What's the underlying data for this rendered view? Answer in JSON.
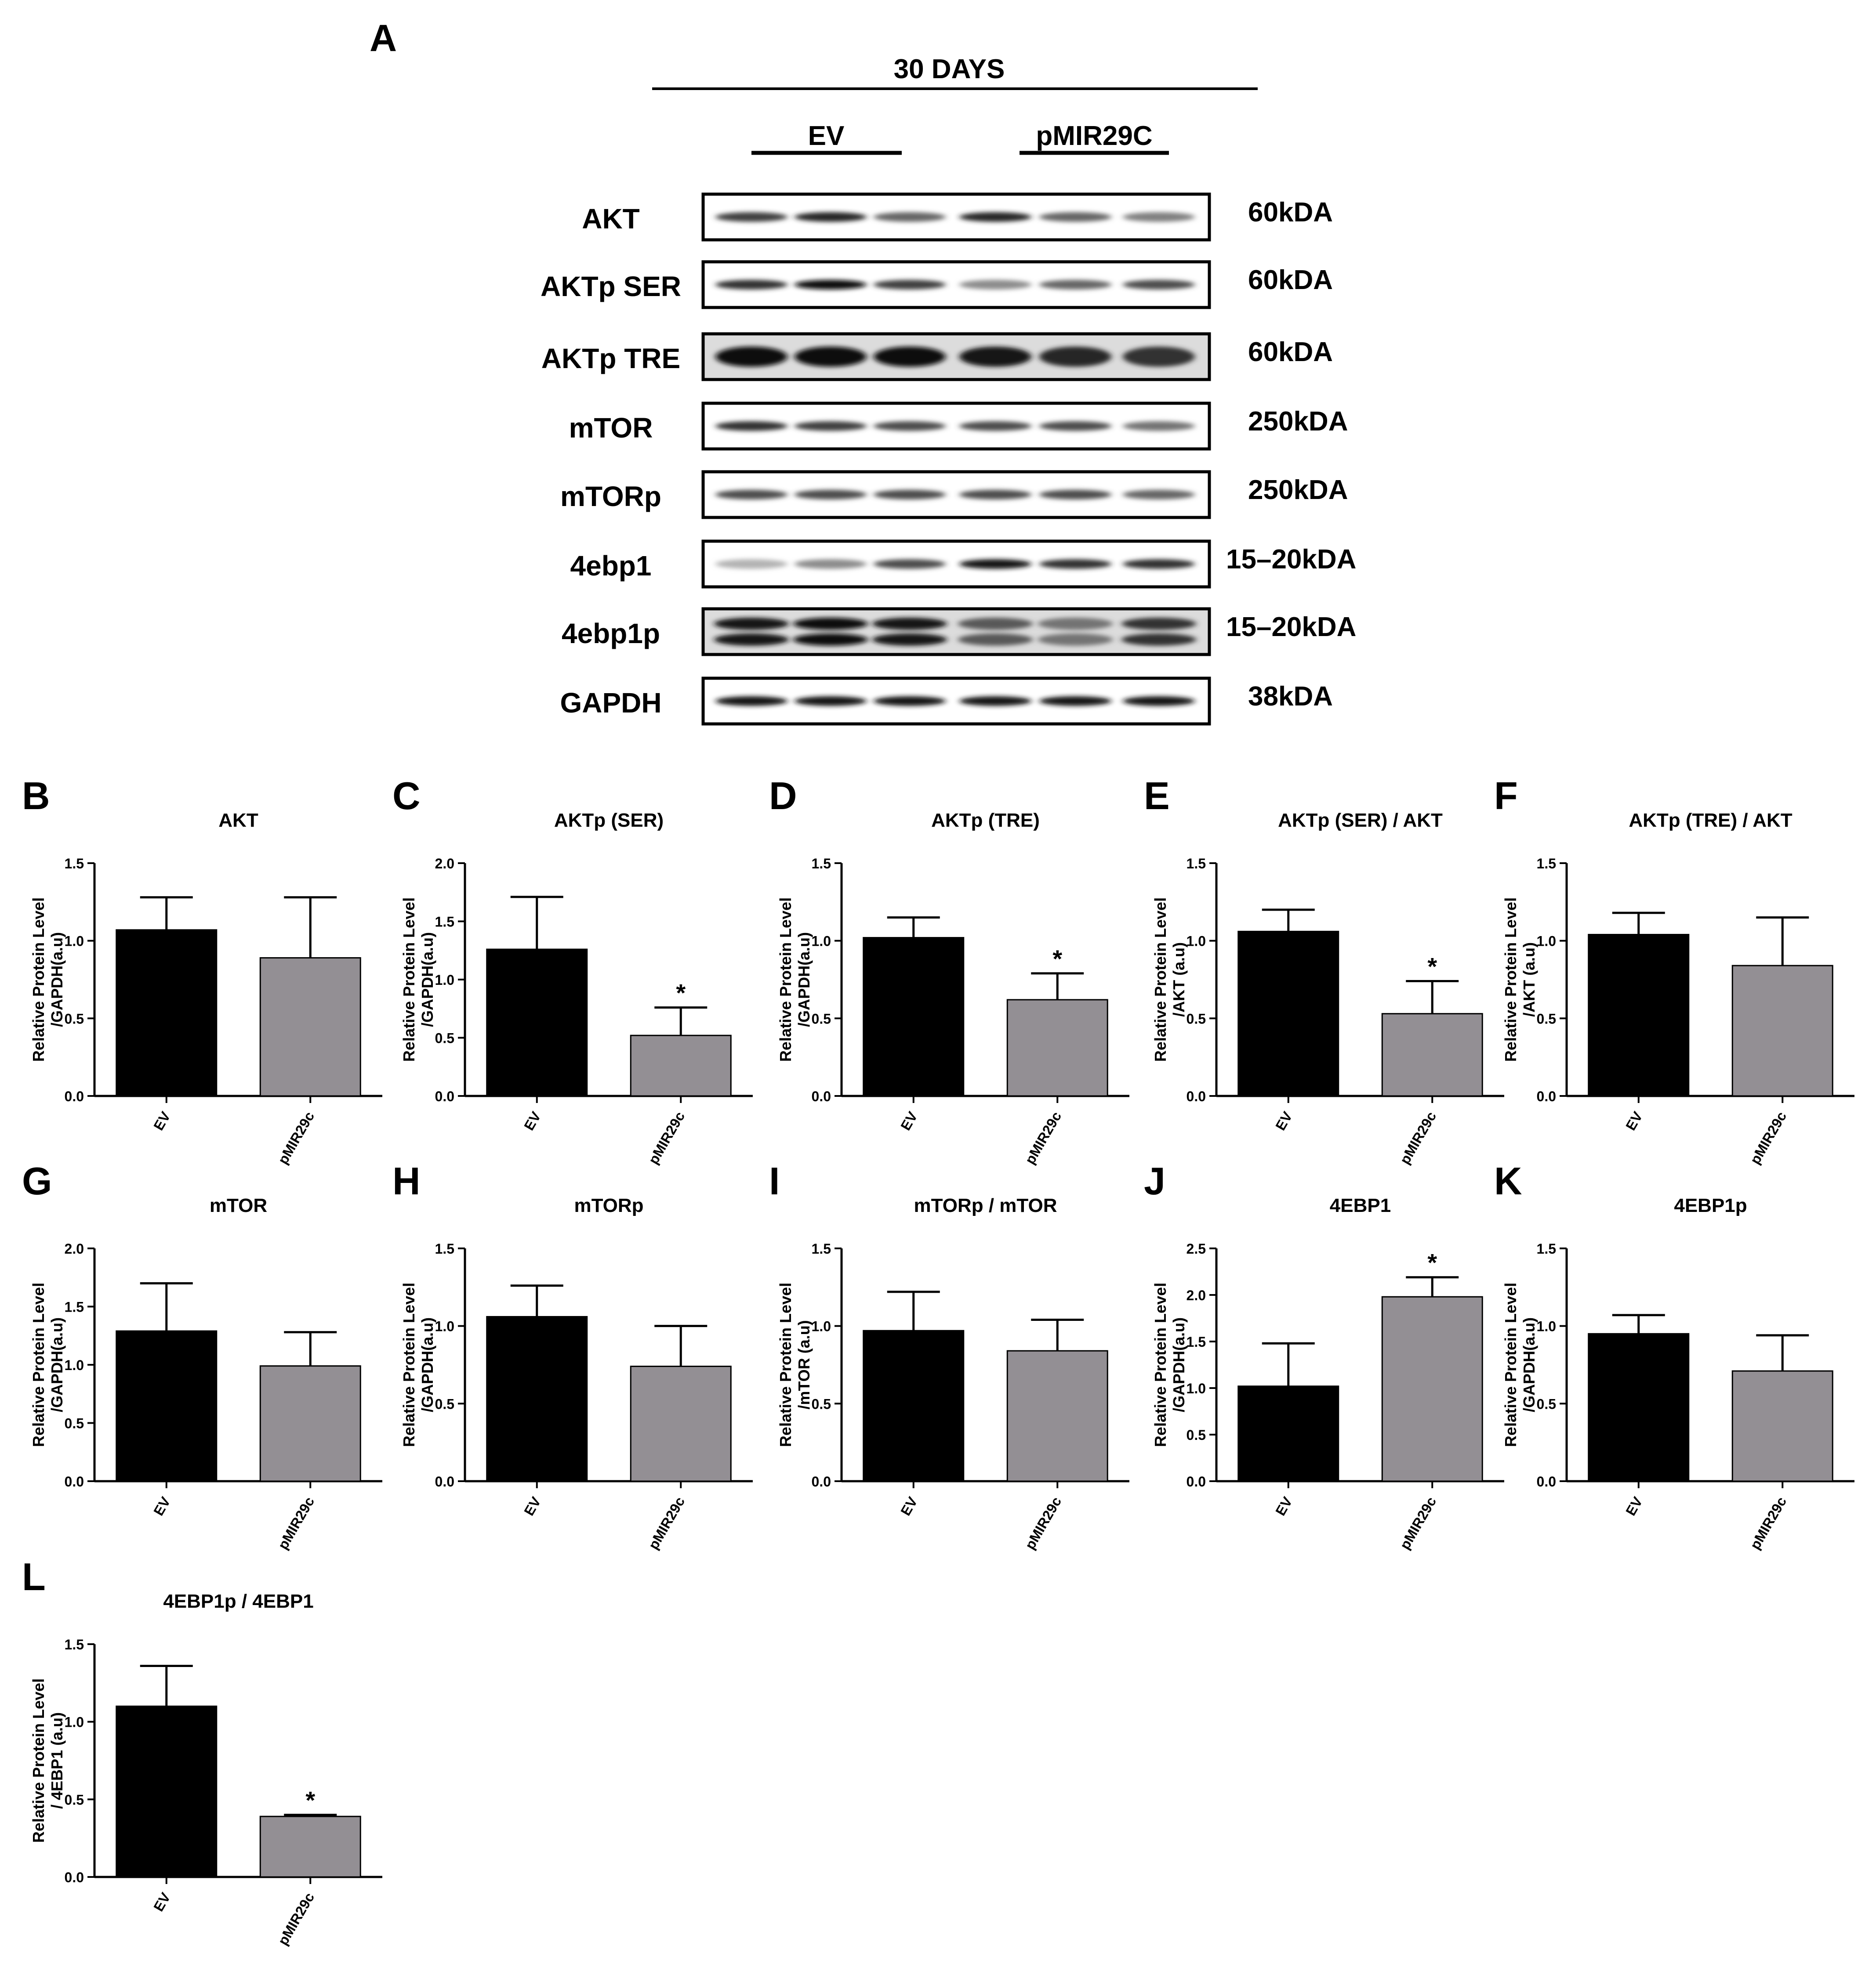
{
  "figure": {
    "panel_A_letter": "A",
    "header": "30 DAYS",
    "groups": [
      "EV",
      "pMIR29C"
    ],
    "rows": [
      {
        "protein": "AKT",
        "size": "60kDA",
        "intensities": [
          0.75,
          0.85,
          0.6,
          0.85,
          0.6,
          0.5
        ],
        "double": false
      },
      {
        "protein": "AKTp SER",
        "size": "60kDA",
        "intensities": [
          0.8,
          0.95,
          0.75,
          0.45,
          0.6,
          0.7
        ],
        "double": false
      },
      {
        "protein": "AKTp TRE",
        "size": "60kDA",
        "intensities": [
          0.95,
          0.95,
          0.95,
          0.9,
          0.85,
          0.8
        ],
        "double": false
      },
      {
        "protein": "mTOR",
        "size": "250kDA",
        "intensities": [
          0.8,
          0.75,
          0.7,
          0.7,
          0.7,
          0.55
        ],
        "double": false
      },
      {
        "protein": "mTORp",
        "size": "250kDA",
        "intensities": [
          0.7,
          0.7,
          0.7,
          0.7,
          0.7,
          0.6
        ],
        "double": false
      },
      {
        "protein": "4ebp1",
        "size": "15–20kDA",
        "intensities": [
          0.3,
          0.45,
          0.7,
          0.9,
          0.8,
          0.8
        ],
        "double": false
      },
      {
        "protein": "4ebp1p",
        "size": "15–20kDA",
        "intensities": [
          0.9,
          0.95,
          0.9,
          0.65,
          0.55,
          0.8
        ],
        "double": true
      },
      {
        "protein": "GAPDH",
        "size": "38kDA",
        "intensities": [
          0.9,
          0.9,
          0.9,
          0.9,
          0.9,
          0.9
        ],
        "double": false
      }
    ]
  },
  "colors": {
    "ev": "#000000",
    "pmir": "#938f94"
  },
  "chart_data": [
    {
      "type": "bar",
      "letter": "B",
      "title": "AKT",
      "ylabel": [
        "Relative Protein Level",
        "/GAPDH(a.u)"
      ],
      "categories": [
        "EV",
        "pMIR29c"
      ],
      "values": [
        1.07,
        0.89
      ],
      "errors": [
        0.21,
        0.39
      ],
      "sig": [
        false,
        false
      ],
      "ylim": [
        0,
        1.5
      ],
      "ticks": [
        "0.0",
        "0.5",
        "1.0",
        "1.5"
      ]
    },
    {
      "type": "bar",
      "letter": "C",
      "title": "AKTp (SER)",
      "ylabel": [
        "Relative Protein Level",
        "/GAPDH(a.u)"
      ],
      "categories": [
        "EV",
        "pMIR29c"
      ],
      "values": [
        1.26,
        0.52
      ],
      "errors": [
        0.45,
        0.24
      ],
      "sig": [
        false,
        true
      ],
      "ylim": [
        0,
        2.0
      ],
      "ticks": [
        "0.0",
        "0.5",
        "1.0",
        "1.5",
        "2.0"
      ]
    },
    {
      "type": "bar",
      "letter": "D",
      "title": "AKTp (TRE)",
      "ylabel": [
        "Relative Protein Level",
        "/GAPDH(a.u)"
      ],
      "categories": [
        "EV",
        "pMIR29c"
      ],
      "values": [
        1.02,
        0.62
      ],
      "errors": [
        0.13,
        0.17
      ],
      "sig": [
        false,
        true
      ],
      "ylim": [
        0,
        1.5
      ],
      "ticks": [
        "0.0",
        "0.5",
        "1.0",
        "1.5"
      ]
    },
    {
      "type": "bar",
      "letter": "E",
      "title": "AKTp (SER) / AKT",
      "ylabel": [
        "Relative Protein Level",
        "/AKT (a.u)"
      ],
      "categories": [
        "EV",
        "pMIR29c"
      ],
      "values": [
        1.06,
        0.53
      ],
      "errors": [
        0.14,
        0.21
      ],
      "sig": [
        false,
        true
      ],
      "ylim": [
        0,
        1.5
      ],
      "ticks": [
        "0.0",
        "0.5",
        "1.0",
        "1.5"
      ]
    },
    {
      "type": "bar",
      "letter": "F",
      "title": "AKTp (TRE) / AKT",
      "ylabel": [
        "Relative Protein Level",
        "/AKT (a.u)"
      ],
      "categories": [
        "EV",
        "pMIR29c"
      ],
      "values": [
        1.04,
        0.84
      ],
      "errors": [
        0.14,
        0.31
      ],
      "sig": [
        false,
        false
      ],
      "ylim": [
        0,
        1.5
      ],
      "ticks": [
        "0.0",
        "0.5",
        "1.0",
        "1.5"
      ]
    },
    {
      "type": "bar",
      "letter": "G",
      "title": "mTOR",
      "ylabel": [
        "Relative Protein Level",
        "/GAPDH(a.u)"
      ],
      "categories": [
        "EV",
        "pMIR29c"
      ],
      "values": [
        1.29,
        0.99
      ],
      "errors": [
        0.41,
        0.29
      ],
      "sig": [
        false,
        false
      ],
      "ylim": [
        0,
        2.0
      ],
      "ticks": [
        "0.0",
        "0.5",
        "1.0",
        "1.5",
        "2.0"
      ]
    },
    {
      "type": "bar",
      "letter": "H",
      "title": "mTORp",
      "ylabel": [
        "Relative Protein Level",
        "/GAPDH(a.u)"
      ],
      "categories": [
        "EV",
        "pMIR29c"
      ],
      "values": [
        1.06,
        0.74
      ],
      "errors": [
        0.2,
        0.26
      ],
      "sig": [
        false,
        false
      ],
      "ylim": [
        0,
        1.5
      ],
      "ticks": [
        "0.0",
        "0.5",
        "1.0",
        "1.5"
      ]
    },
    {
      "type": "bar",
      "letter": "I",
      "title": "mTORp / mTOR",
      "ylabel": [
        "Relative Protein Level",
        "/mTOR (a.u)"
      ],
      "categories": [
        "EV",
        "pMIR29c"
      ],
      "values": [
        0.97,
        0.84
      ],
      "errors": [
        0.25,
        0.2
      ],
      "sig": [
        false,
        false
      ],
      "ylim": [
        0,
        1.5
      ],
      "ticks": [
        "0.0",
        "0.5",
        "1.0",
        "1.5"
      ]
    },
    {
      "type": "bar",
      "letter": "J",
      "title": "4EBP1",
      "ylabel": [
        "Relative Protein Level",
        "/GAPDH(a.u)"
      ],
      "categories": [
        "EV",
        "pMIR29c"
      ],
      "values": [
        1.02,
        1.98
      ],
      "errors": [
        0.46,
        0.21
      ],
      "sig": [
        false,
        true
      ],
      "ylim": [
        0,
        2.5
      ],
      "ticks": [
        "0.0",
        "0.5",
        "1.0",
        "1.5",
        "2.0",
        "2.5"
      ]
    },
    {
      "type": "bar",
      "letter": "K",
      "title": "4EBP1p",
      "ylabel": [
        "Relative Protein Level",
        "/GAPDH(a.u)"
      ],
      "categories": [
        "EV",
        "pMIR29c"
      ],
      "values": [
        0.95,
        0.71
      ],
      "errors": [
        0.12,
        0.23
      ],
      "sig": [
        false,
        false
      ],
      "ylim": [
        0,
        1.5
      ],
      "ticks": [
        "0.0",
        "0.5",
        "1.0",
        "1.5"
      ]
    },
    {
      "type": "bar",
      "letter": "L",
      "title": "4EBP1p / 4EBP1",
      "ylabel": [
        "Relative Protein Level",
        "/ 4EBP1 (a.u)"
      ],
      "categories": [
        "EV",
        "pMIR29c"
      ],
      "values": [
        1.1,
        0.39
      ],
      "errors": [
        0.26,
        0.01
      ],
      "sig": [
        false,
        true
      ],
      "ylim": [
        0,
        1.5
      ],
      "ticks": [
        "0.0",
        "0.5",
        "1.0",
        "1.5"
      ]
    }
  ]
}
